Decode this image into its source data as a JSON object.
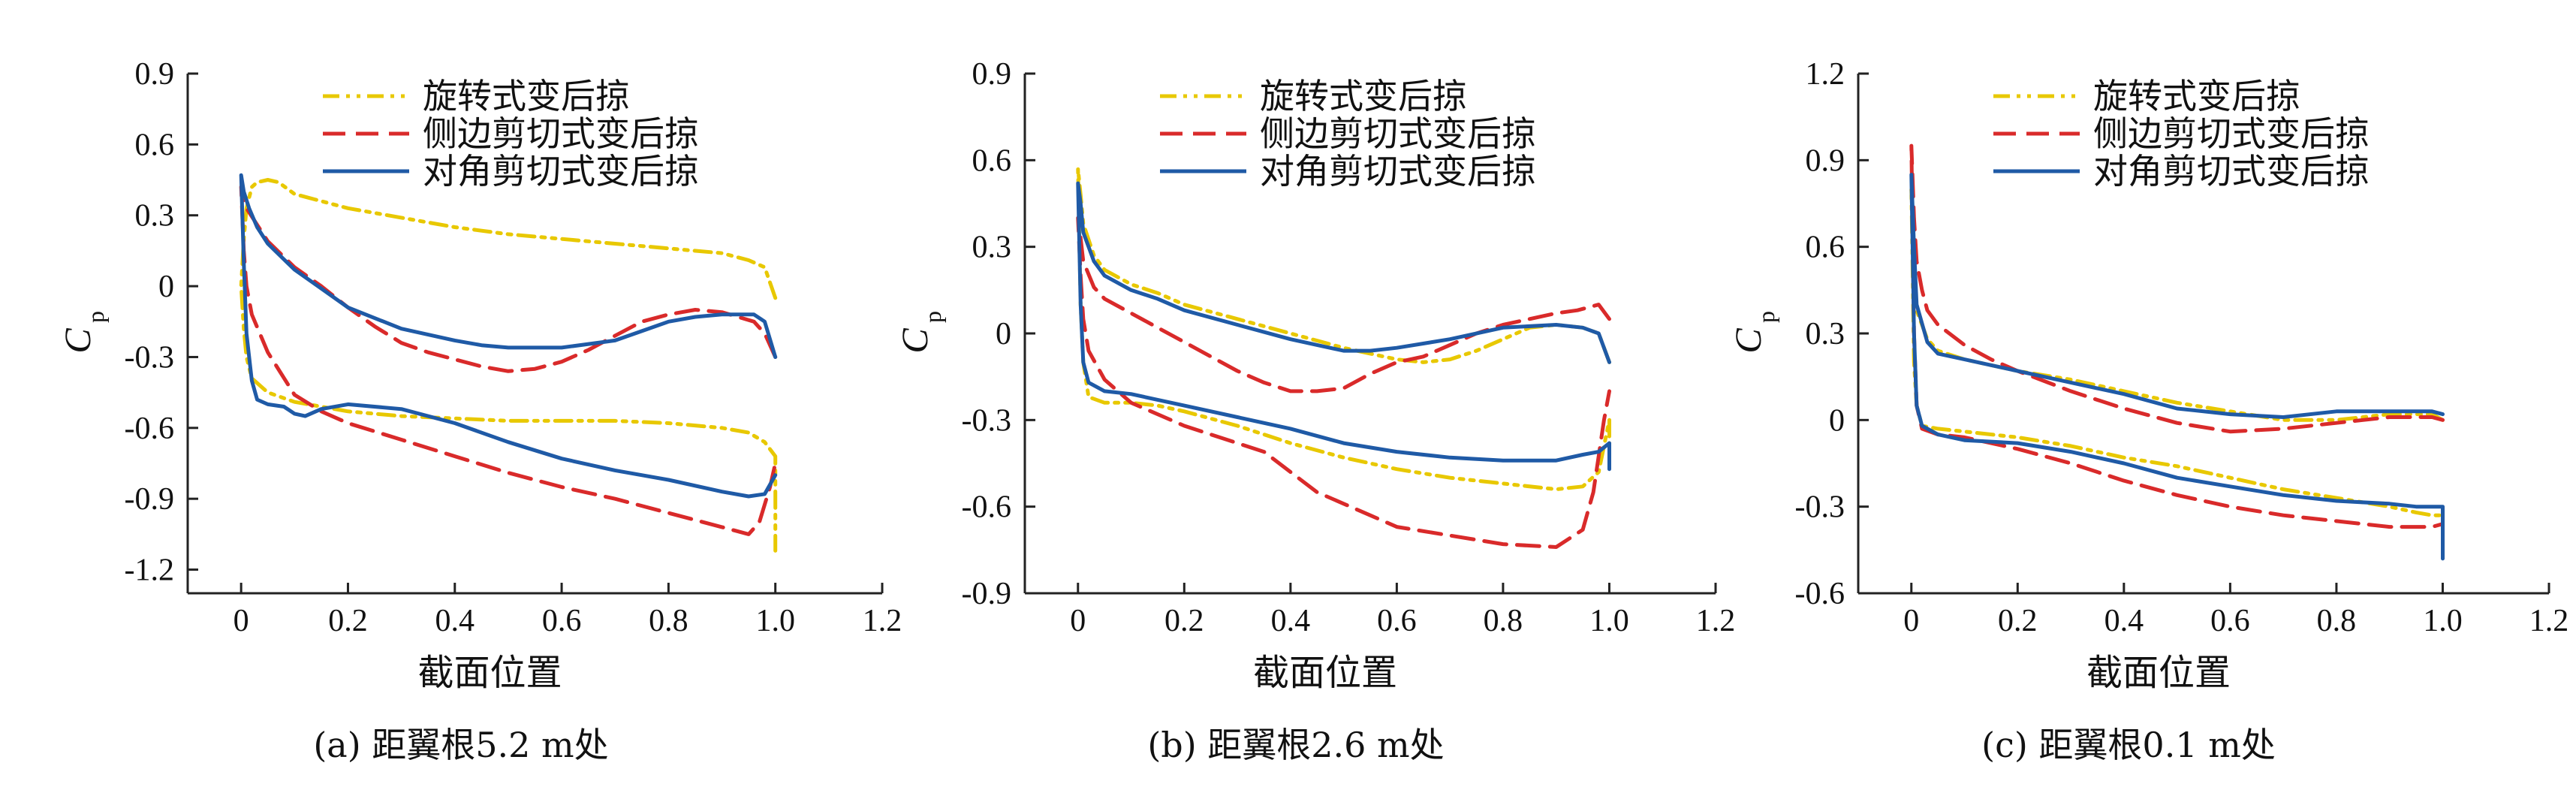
{
  "figure": {
    "panels": [
      {
        "caption": "(a) 距翼根5.2 m处"
      },
      {
        "caption": "(b) 距翼根2.6 m处"
      },
      {
        "caption": "(c) 距翼根0.1 m处"
      }
    ]
  },
  "chart_data": [
    {
      "type": "line",
      "xlabel": "截面位置",
      "ylabel": "C",
      "ylabel_sub": "p",
      "xlim": [
        -0.1,
        1.2
      ],
      "ylim": [
        -1.3,
        0.9
      ],
      "xticks": [
        0,
        0.2,
        0.4,
        0.6,
        0.8,
        1.0,
        1.2
      ],
      "xtick_labels": [
        "0",
        "0.2",
        "0.4",
        "0.6",
        "0.8",
        "1.0",
        "1.2"
      ],
      "yticks": [
        0.9,
        0.6,
        0.3,
        0,
        -0.3,
        -0.6,
        -0.9,
        -1.2
      ],
      "ytick_labels": [
        "0.9",
        "0.6",
        "0.3",
        "0",
        "-0.3",
        "-0.6",
        "-0.9",
        "-1.2"
      ],
      "legend_position": "top",
      "series": [
        {
          "name": "旋转式变后掠",
          "color": "#e8c800",
          "dash": "dashdotdot",
          "x": [
            1.0,
            0.98,
            0.95,
            0.9,
            0.8,
            0.7,
            0.6,
            0.5,
            0.4,
            0.3,
            0.2,
            0.1,
            0.07,
            0.05,
            0.03,
            0.02,
            0.01,
            0.005,
            0.0,
            0.005,
            0.01,
            0.02,
            0.05,
            0.1,
            0.15,
            0.2,
            0.3,
            0.4,
            0.5,
            0.6,
            0.7,
            0.8,
            0.9,
            0.95,
            0.98,
            1.0,
            1.0
          ],
          "y": [
            -0.05,
            0.08,
            0.11,
            0.14,
            0.16,
            0.18,
            0.2,
            0.22,
            0.25,
            0.29,
            0.33,
            0.39,
            0.44,
            0.45,
            0.44,
            0.42,
            0.33,
            0.2,
            0.0,
            -0.18,
            -0.3,
            -0.39,
            -0.45,
            -0.49,
            -0.51,
            -0.53,
            -0.55,
            -0.56,
            -0.57,
            -0.57,
            -0.57,
            -0.58,
            -0.6,
            -0.62,
            -0.66,
            -0.72,
            -1.12
          ]
        },
        {
          "name": "侧边剪切式变后掠",
          "color": "#d92a2a",
          "dash": "dash",
          "x": [
            1.0,
            0.98,
            0.96,
            0.93,
            0.9,
            0.85,
            0.8,
            0.75,
            0.7,
            0.65,
            0.6,
            0.55,
            0.5,
            0.45,
            0.4,
            0.35,
            0.3,
            0.25,
            0.2,
            0.15,
            0.1,
            0.05,
            0.03,
            0.01,
            0.005,
            0.0,
            0.005,
            0.01,
            0.02,
            0.05,
            0.1,
            0.15,
            0.2,
            0.3,
            0.4,
            0.5,
            0.6,
            0.7,
            0.8,
            0.9,
            0.95,
            0.97,
            0.99,
            1.0
          ],
          "y": [
            -0.3,
            -0.2,
            -0.15,
            -0.13,
            -0.11,
            -0.1,
            -0.12,
            -0.15,
            -0.21,
            -0.27,
            -0.32,
            -0.35,
            -0.36,
            -0.34,
            -0.31,
            -0.28,
            -0.24,
            -0.17,
            -0.09,
            0.0,
            0.08,
            0.19,
            0.26,
            0.33,
            0.36,
            0.42,
            0.15,
            0.0,
            -0.12,
            -0.28,
            -0.46,
            -0.53,
            -0.58,
            -0.65,
            -0.72,
            -0.79,
            -0.85,
            -0.9,
            -0.96,
            -1.02,
            -1.05,
            -1.0,
            -0.85,
            -0.75
          ]
        },
        {
          "name": "对角剪切式变后掠",
          "color": "#1f5aa6",
          "dash": "solid",
          "x": [
            1.0,
            0.98,
            0.96,
            0.93,
            0.9,
            0.85,
            0.8,
            0.75,
            0.7,
            0.6,
            0.5,
            0.45,
            0.4,
            0.3,
            0.2,
            0.15,
            0.1,
            0.05,
            0.03,
            0.015,
            0.005,
            0.0,
            0.005,
            0.01,
            0.02,
            0.03,
            0.05,
            0.08,
            0.1,
            0.12,
            0.15,
            0.2,
            0.3,
            0.4,
            0.5,
            0.6,
            0.7,
            0.8,
            0.9,
            0.95,
            0.98,
            1.0
          ],
          "y": [
            -0.3,
            -0.15,
            -0.12,
            -0.12,
            -0.12,
            -0.13,
            -0.15,
            -0.19,
            -0.23,
            -0.26,
            -0.26,
            -0.25,
            -0.23,
            -0.18,
            -0.09,
            -0.01,
            0.07,
            0.18,
            0.25,
            0.33,
            0.4,
            0.47,
            0.1,
            -0.2,
            -0.4,
            -0.48,
            -0.5,
            -0.51,
            -0.54,
            -0.55,
            -0.52,
            -0.5,
            -0.52,
            -0.58,
            -0.66,
            -0.73,
            -0.78,
            -0.82,
            -0.87,
            -0.89,
            -0.88,
            -0.8
          ]
        }
      ]
    },
    {
      "type": "line",
      "xlabel": "截面位置",
      "ylabel": "C",
      "ylabel_sub": "p",
      "xlim": [
        -0.1,
        1.2
      ],
      "ylim": [
        -0.9,
        0.9
      ],
      "xticks": [
        0,
        0.2,
        0.4,
        0.6,
        0.8,
        1.0,
        1.2
      ],
      "xtick_labels": [
        "0",
        "0.2",
        "0.4",
        "0.6",
        "0.8",
        "1.0",
        "1.2"
      ],
      "yticks": [
        0.9,
        0.6,
        0.3,
        0,
        -0.3,
        -0.6,
        -0.9
      ],
      "ytick_labels": [
        "0.9",
        "0.6",
        "0.3",
        "0",
        "-0.3",
        "-0.6",
        "-0.9"
      ],
      "legend_position": "top",
      "series": [
        {
          "name": "旋转式变后掠",
          "color": "#e8c800",
          "dash": "dashdotdot",
          "x": [
            1.0,
            0.98,
            0.95,
            0.9,
            0.85,
            0.8,
            0.75,
            0.7,
            0.65,
            0.6,
            0.5,
            0.4,
            0.3,
            0.2,
            0.15,
            0.1,
            0.05,
            0.03,
            0.01,
            0.005,
            0.0,
            0.005,
            0.01,
            0.02,
            0.05,
            0.1,
            0.15,
            0.2,
            0.3,
            0.4,
            0.5,
            0.6,
            0.7,
            0.8,
            0.9,
            0.95,
            0.98,
            1.0,
            1.0
          ],
          "y": [
            -0.1,
            0.0,
            0.02,
            0.03,
            0.02,
            -0.02,
            -0.06,
            -0.09,
            -0.1,
            -0.09,
            -0.05,
            0.0,
            0.05,
            0.1,
            0.14,
            0.17,
            0.22,
            0.27,
            0.38,
            0.48,
            0.57,
            0.1,
            -0.1,
            -0.22,
            -0.24,
            -0.24,
            -0.25,
            -0.27,
            -0.32,
            -0.38,
            -0.43,
            -0.47,
            -0.5,
            -0.52,
            -0.54,
            -0.53,
            -0.48,
            -0.3,
            -0.42
          ]
        },
        {
          "name": "侧边剪切式变后掠",
          "color": "#d92a2a",
          "dash": "dash",
          "x": [
            1.0,
            0.98,
            0.96,
            0.94,
            0.9,
            0.85,
            0.8,
            0.75,
            0.7,
            0.65,
            0.6,
            0.55,
            0.5,
            0.45,
            0.4,
            0.35,
            0.3,
            0.25,
            0.2,
            0.15,
            0.1,
            0.05,
            0.03,
            0.01,
            0.005,
            0.0,
            0.005,
            0.01,
            0.02,
            0.05,
            0.1,
            0.2,
            0.3,
            0.35,
            0.4,
            0.45,
            0.5,
            0.55,
            0.6,
            0.7,
            0.8,
            0.9,
            0.95,
            0.97,
            0.99,
            1.0
          ],
          "y": [
            0.05,
            0.1,
            0.09,
            0.08,
            0.07,
            0.05,
            0.03,
            0.0,
            -0.04,
            -0.08,
            -0.1,
            -0.14,
            -0.19,
            -0.2,
            -0.2,
            -0.17,
            -0.13,
            -0.08,
            -0.03,
            0.02,
            0.07,
            0.12,
            0.16,
            0.25,
            0.33,
            0.4,
            0.2,
            0.05,
            -0.06,
            -0.16,
            -0.24,
            -0.32,
            -0.38,
            -0.41,
            -0.48,
            -0.55,
            -0.59,
            -0.63,
            -0.67,
            -0.7,
            -0.73,
            -0.74,
            -0.68,
            -0.55,
            -0.3,
            -0.2
          ]
        },
        {
          "name": "对角剪切式变后掠",
          "color": "#1f5aa6",
          "dash": "solid",
          "x": [
            1.0,
            0.98,
            0.95,
            0.9,
            0.8,
            0.7,
            0.6,
            0.55,
            0.5,
            0.45,
            0.4,
            0.3,
            0.2,
            0.15,
            0.1,
            0.05,
            0.03,
            0.01,
            0.005,
            0.0,
            0.005,
            0.01,
            0.02,
            0.05,
            0.1,
            0.15,
            0.2,
            0.3,
            0.4,
            0.5,
            0.6,
            0.7,
            0.8,
            0.9,
            0.95,
            0.98,
            1.0,
            1.0
          ],
          "y": [
            -0.1,
            0.0,
            0.02,
            0.03,
            0.02,
            -0.02,
            -0.05,
            -0.06,
            -0.06,
            -0.04,
            -0.02,
            0.03,
            0.08,
            0.12,
            0.15,
            0.2,
            0.25,
            0.35,
            0.45,
            0.52,
            0.1,
            -0.1,
            -0.17,
            -0.2,
            -0.21,
            -0.23,
            -0.25,
            -0.29,
            -0.33,
            -0.38,
            -0.41,
            -0.43,
            -0.44,
            -0.44,
            -0.42,
            -0.41,
            -0.38,
            -0.47
          ]
        }
      ]
    },
    {
      "type": "line",
      "xlabel": "截面位置",
      "ylabel": "C",
      "ylabel_sub": "p",
      "xlim": [
        -0.1,
        1.2
      ],
      "ylim": [
        -0.6,
        1.2
      ],
      "xticks": [
        0,
        0.2,
        0.4,
        0.6,
        0.8,
        1.0,
        1.2
      ],
      "xtick_labels": [
        "0",
        "0.2",
        "0.4",
        "0.6",
        "0.8",
        "1.0",
        "1.2"
      ],
      "yticks": [
        1.2,
        0.9,
        0.6,
        0.3,
        0,
        -0.3,
        -0.6
      ],
      "ytick_labels": [
        "1.2",
        "0.9",
        "0.6",
        "0.3",
        "0",
        "-0.3",
        "-0.6"
      ],
      "legend_position": "top",
      "series": [
        {
          "name": "旋转式变后掠",
          "color": "#e8c800",
          "dash": "dashdotdot",
          "x": [
            1.0,
            0.98,
            0.95,
            0.9,
            0.85,
            0.8,
            0.7,
            0.6,
            0.5,
            0.4,
            0.3,
            0.2,
            0.15,
            0.1,
            0.05,
            0.03,
            0.01,
            0.005,
            0.0,
            0.005,
            0.01,
            0.02,
            0.05,
            0.1,
            0.2,
            0.3,
            0.4,
            0.5,
            0.6,
            0.7,
            0.8,
            0.9,
            0.95,
            0.98,
            1.0,
            1.0
          ],
          "y": [
            0.0,
            0.02,
            0.02,
            0.02,
            0.01,
            0.0,
            0.0,
            0.03,
            0.06,
            0.1,
            0.14,
            0.17,
            0.19,
            0.21,
            0.24,
            0.28,
            0.38,
            0.55,
            0.8,
            0.2,
            0.05,
            -0.02,
            -0.03,
            -0.04,
            -0.06,
            -0.09,
            -0.13,
            -0.16,
            -0.2,
            -0.24,
            -0.27,
            -0.3,
            -0.32,
            -0.33,
            -0.33,
            -0.4
          ]
        },
        {
          "name": "侧边剪切式变后掠",
          "color": "#d92a2a",
          "dash": "dash",
          "x": [
            1.0,
            0.98,
            0.95,
            0.9,
            0.85,
            0.8,
            0.7,
            0.6,
            0.5,
            0.4,
            0.3,
            0.2,
            0.15,
            0.1,
            0.05,
            0.03,
            0.02,
            0.01,
            0.005,
            0.0,
            0.005,
            0.01,
            0.02,
            0.05,
            0.1,
            0.2,
            0.3,
            0.4,
            0.5,
            0.6,
            0.7,
            0.8,
            0.9,
            0.95,
            0.98,
            1.0,
            1.0
          ],
          "y": [
            0.0,
            0.01,
            0.01,
            0.01,
            0.0,
            -0.01,
            -0.03,
            -0.04,
            -0.01,
            0.04,
            0.1,
            0.17,
            0.21,
            0.26,
            0.33,
            0.38,
            0.45,
            0.55,
            0.7,
            0.95,
            0.3,
            0.05,
            -0.03,
            -0.05,
            -0.06,
            -0.1,
            -0.15,
            -0.21,
            -0.26,
            -0.3,
            -0.33,
            -0.35,
            -0.37,
            -0.37,
            -0.37,
            -0.36,
            -0.38
          ]
        },
        {
          "name": "对角剪切式变后掠",
          "color": "#1f5aa6",
          "dash": "solid",
          "x": [
            1.0,
            0.98,
            0.95,
            0.9,
            0.85,
            0.8,
            0.7,
            0.6,
            0.5,
            0.4,
            0.3,
            0.2,
            0.15,
            0.1,
            0.05,
            0.03,
            0.01,
            0.005,
            0.0,
            0.005,
            0.01,
            0.02,
            0.05,
            0.1,
            0.2,
            0.3,
            0.4,
            0.5,
            0.6,
            0.7,
            0.8,
            0.9,
            0.95,
            0.98,
            1.0,
            1.0
          ],
          "y": [
            0.02,
            0.03,
            0.03,
            0.03,
            0.03,
            0.03,
            0.01,
            0.02,
            0.04,
            0.09,
            0.13,
            0.17,
            0.19,
            0.21,
            0.23,
            0.27,
            0.4,
            0.6,
            0.85,
            0.3,
            0.05,
            -0.02,
            -0.05,
            -0.07,
            -0.08,
            -0.11,
            -0.15,
            -0.2,
            -0.23,
            -0.26,
            -0.28,
            -0.29,
            -0.3,
            -0.3,
            -0.3,
            -0.48
          ]
        }
      ]
    }
  ]
}
